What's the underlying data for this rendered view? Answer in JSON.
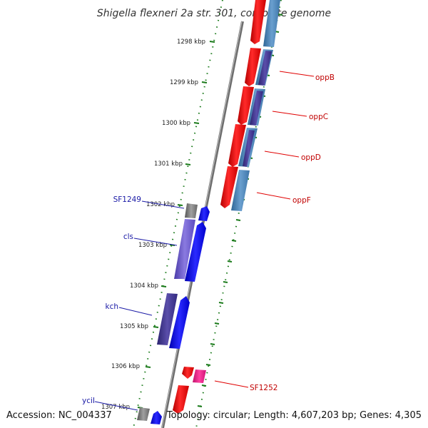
{
  "title": "Shigella flexneri 2a str. 301, complete genome",
  "footer": {
    "accession": "Accession: NC_004337",
    "summary": "Topology: circular; Length: 4,607,203 bp; Genes: 4,305"
  },
  "ticks": [
    "1298 kbp",
    "1299 kbp",
    "1300 kbp",
    "1301 kbp",
    "1302 kbp",
    "1303 kbp",
    "1304 kbp",
    "1305 kbp",
    "1306 kbp",
    "1307 kbp"
  ],
  "gene_labels": {
    "oppB": "oppB",
    "oppC": "oppC",
    "oppD": "oppD",
    "oppF": "oppF",
    "SF1249": "SF1249",
    "cls": "cls",
    "kch": "kch",
    "SF1252": "SF1252",
    "yciI": "yciI"
  },
  "colors": {
    "forward_cds": "#ff0000",
    "blast_hit": "#4682b4",
    "reverse_cds": "#0000ff",
    "reverse_hit": "#6a5acd",
    "gray_feature": "#808080",
    "magenta_feature": "#ff1493",
    "backbone": "#808080",
    "tick": "#1a7a1a"
  }
}
